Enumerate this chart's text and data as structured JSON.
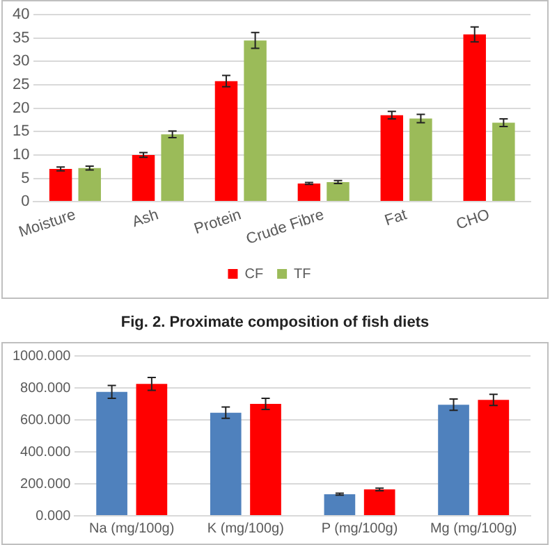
{
  "chart_data": [
    {
      "type": "bar",
      "categories": [
        "Moisture",
        "Ash",
        "Protein",
        "Crude Fibre",
        "Fat",
        "CHO"
      ],
      "series": [
        {
          "name": "CF",
          "color": "#ff0000",
          "values": [
            7.0,
            10.0,
            25.8,
            3.9,
            18.5,
            35.8
          ],
          "errors": [
            0.4,
            0.5,
            1.2,
            0.2,
            0.8,
            1.6
          ]
        },
        {
          "name": "TF",
          "color": "#9bbb59",
          "values": [
            7.2,
            14.4,
            34.5,
            4.2,
            17.8,
            16.9
          ],
          "errors": [
            0.4,
            0.7,
            1.7,
            0.3,
            0.9,
            0.8
          ]
        }
      ],
      "ylim": [
        0,
        40
      ],
      "yticks": [
        0,
        5,
        10,
        15,
        20,
        25,
        30,
        35,
        40
      ],
      "grid": "y",
      "legend": "bottom",
      "annotations": [
        "Fig. 2. Proximate composition of fish diets"
      ]
    },
    {
      "type": "bar",
      "categories": [
        "Na (mg/100g)",
        "K (mg/100g)",
        "P (mg/100g)",
        "Mg (mg/100g)"
      ],
      "series": [
        {
          "color": "#4f81bd",
          "values": [
            775,
            645,
            135,
            695
          ],
          "errors": [
            40,
            35,
            6,
            35
          ]
        },
        {
          "color": "#ff0000",
          "values": [
            825,
            700,
            165,
            725
          ],
          "errors": [
            40,
            35,
            8,
            35
          ]
        }
      ],
      "ylim": [
        0,
        1000
      ],
      "yticks": [
        {
          "value": 0,
          "label": "0.000"
        },
        {
          "value": 200,
          "label": "200.000"
        },
        {
          "value": 400,
          "label": "400.000"
        },
        {
          "value": 600,
          "label": "600.000"
        },
        {
          "value": 800,
          "label": "800.000"
        },
        {
          "value": 1000,
          "label": "1000.000"
        }
      ],
      "grid": "y"
    }
  ]
}
